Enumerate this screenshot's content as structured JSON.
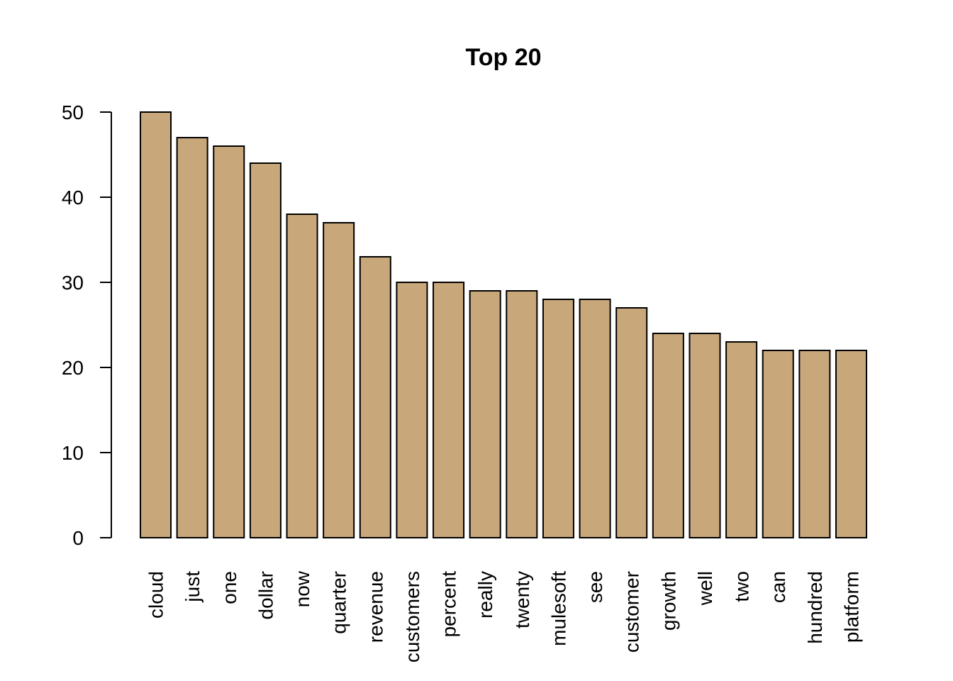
{
  "chart_data": {
    "type": "bar",
    "title": "Top 20",
    "xlabel": "",
    "ylabel": "",
    "ylim": [
      0,
      50
    ],
    "yticks": [
      0,
      10,
      20,
      30,
      40,
      50
    ],
    "bar_color": "#C8A77A",
    "grid": false,
    "categories": [
      "cloud",
      "just",
      "one",
      "dollar",
      "now",
      "quarter",
      "revenue",
      "customers",
      "percent",
      "really",
      "twenty",
      "mulesoft",
      "see",
      "customer",
      "growth",
      "well",
      "two",
      "can",
      "hundred",
      "platform"
    ],
    "values": [
      50,
      47,
      46,
      44,
      38,
      37,
      33,
      30,
      30,
      29,
      29,
      28,
      28,
      27,
      24,
      24,
      23,
      22,
      22,
      22
    ]
  }
}
